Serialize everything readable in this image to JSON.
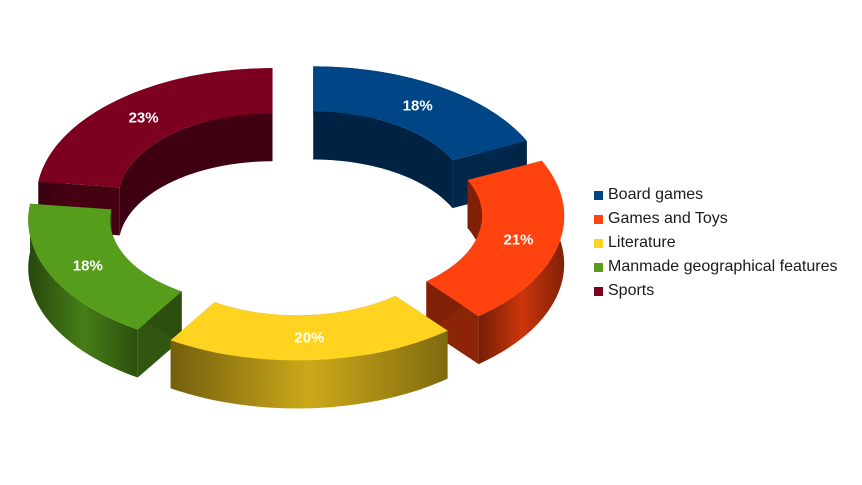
{
  "chart_data": {
    "type": "pie",
    "style": "3d-exploded-donut",
    "title": "",
    "categories": [
      "Board games",
      "Games and Toys",
      "Literature",
      "Manmade geographical features",
      "Sports"
    ],
    "values": [
      18,
      21,
      20,
      18,
      23
    ],
    "labels": [
      "18%",
      "21%",
      "20%",
      "18%",
      "23%"
    ],
    "colors": [
      "#004586",
      "#ff420e",
      "#ffd320",
      "#579d1c",
      "#7e0021"
    ],
    "legend_position": "right"
  }
}
